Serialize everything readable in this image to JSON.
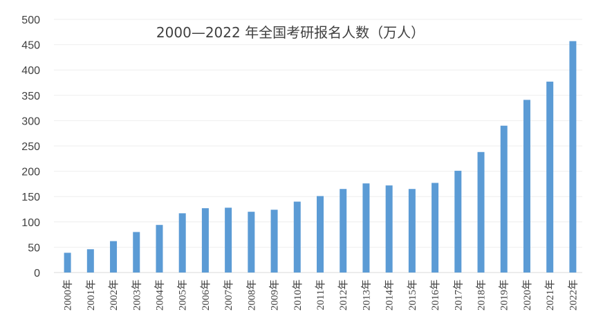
{
  "chart_data": {
    "type": "bar",
    "title": "2000—2022 年全国考研报名人数（万人）",
    "xlabel": "",
    "ylabel": "",
    "categories": [
      "2000年",
      "2001年",
      "2002年",
      "2003年",
      "2004年",
      "2005年",
      "2006年",
      "2007年",
      "2008年",
      "2009年",
      "2010年",
      "2011年",
      "2012年",
      "2013年",
      "2014年",
      "2015年",
      "2016年",
      "2017年",
      "2018年",
      "2019年",
      "2020年",
      "2021年",
      "2022年"
    ],
    "values": [
      39,
      46,
      62,
      80,
      94,
      117,
      127,
      128,
      120,
      124,
      140,
      151,
      165,
      176,
      172,
      165,
      177,
      201,
      238,
      290,
      341,
      377,
      457
    ],
    "ylim": [
      0,
      500
    ],
    "yticks": [
      0,
      50,
      100,
      150,
      200,
      250,
      300,
      350,
      400,
      450,
      500
    ],
    "grid": true,
    "bar_color": "#5b9bd5",
    "grid_color": "#eeeeee"
  }
}
